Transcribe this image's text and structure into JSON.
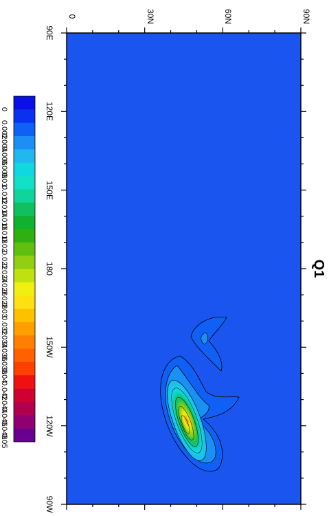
{
  "map": {
    "title": "Q1",
    "lat_ticks": [
      "0",
      "30N",
      "60N",
      "90N"
    ],
    "lon_ticks": [
      "90E",
      "120E",
      "150E",
      "180",
      "150W",
      "120W",
      "90W"
    ],
    "background_color": "#1a55f0",
    "orientation": "rotated 90 degrees clockwise"
  },
  "colorbar": {
    "labels": [
      "0",
      "0.002",
      "0.004",
      "0.006",
      "0.008",
      "0.01",
      "0.012",
      "0.014",
      "0.016",
      "0.018",
      "0.02",
      "0.022",
      "0.024",
      "0.026",
      "0.028",
      "0.03",
      "0.032",
      "0.034",
      "0.036",
      "0.038",
      "0.04",
      "0.042",
      "0.044",
      "0.046",
      "0.048",
      "0.05"
    ],
    "colors": [
      "#0a10e6",
      "#0a30f0",
      "#1060f5",
      "#1a90f5",
      "#20b8ee",
      "#10d8e0",
      "#10e0c8",
      "#10d49a",
      "#10c060",
      "#10b030",
      "#30b010",
      "#60c010",
      "#90d010",
      "#c0e010",
      "#f0f010",
      "#ffe010",
      "#ffc000",
      "#ffa000",
      "#ff8000",
      "#ff6000",
      "#ff4000",
      "#f01010",
      "#d00030",
      "#b00050",
      "#900070",
      "#6a0090"
    ]
  }
}
